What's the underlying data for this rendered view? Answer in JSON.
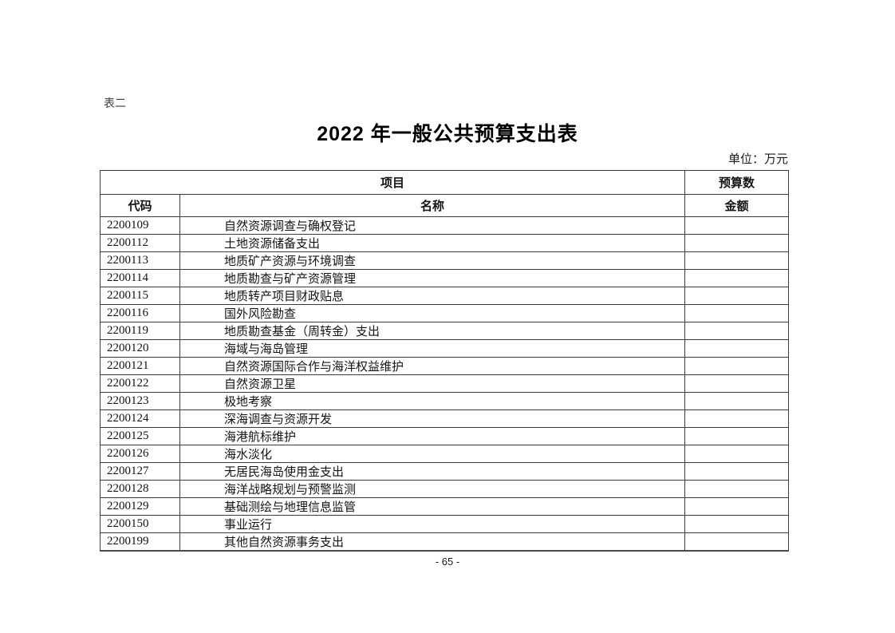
{
  "page": {
    "table_label": "表二",
    "title": "2022 年一般公共预算支出表",
    "unit_note": "单位：万元",
    "page_number": "- 65 -"
  },
  "table": {
    "header_row1": {
      "item": "项目",
      "budget": "预算数"
    },
    "header_row2": {
      "code": "代码",
      "name": "名称",
      "amount": "金额"
    },
    "rows": [
      {
        "code": "2200109",
        "name": "自然资源调查与确权登记",
        "amount": ""
      },
      {
        "code": "2200112",
        "name": "土地资源储备支出",
        "amount": ""
      },
      {
        "code": "2200113",
        "name": "地质矿产资源与环境调查",
        "amount": ""
      },
      {
        "code": "2200114",
        "name": "地质勘查与矿产资源管理",
        "amount": ""
      },
      {
        "code": "2200115",
        "name": "地质转产项目财政贴息",
        "amount": ""
      },
      {
        "code": "2200116",
        "name": "国外风险勘查",
        "amount": ""
      },
      {
        "code": "2200119",
        "name": "地质勘查基金（周转金）支出",
        "amount": ""
      },
      {
        "code": "2200120",
        "name": "海域与海岛管理",
        "amount": ""
      },
      {
        "code": "2200121",
        "name": "自然资源国际合作与海洋权益维护",
        "amount": ""
      },
      {
        "code": "2200122",
        "name": "自然资源卫星",
        "amount": ""
      },
      {
        "code": "2200123",
        "name": "极地考察",
        "amount": ""
      },
      {
        "code": "2200124",
        "name": "深海调查与资源开发",
        "amount": ""
      },
      {
        "code": "2200125",
        "name": "海港航标维护",
        "amount": ""
      },
      {
        "code": "2200126",
        "name": "海水淡化",
        "amount": ""
      },
      {
        "code": "2200127",
        "name": "无居民海岛使用金支出",
        "amount": ""
      },
      {
        "code": "2200128",
        "name": "海洋战略规划与预警监测",
        "amount": ""
      },
      {
        "code": "2200129",
        "name": "基础测绘与地理信息监管",
        "amount": ""
      },
      {
        "code": "2200150",
        "name": "事业运行",
        "amount": ""
      },
      {
        "code": "2200199",
        "name": "其他自然资源事务支出",
        "amount": ""
      }
    ]
  },
  "colors": {
    "border": "#3c3c3c",
    "text": "#141414",
    "background": "#ffffff"
  }
}
